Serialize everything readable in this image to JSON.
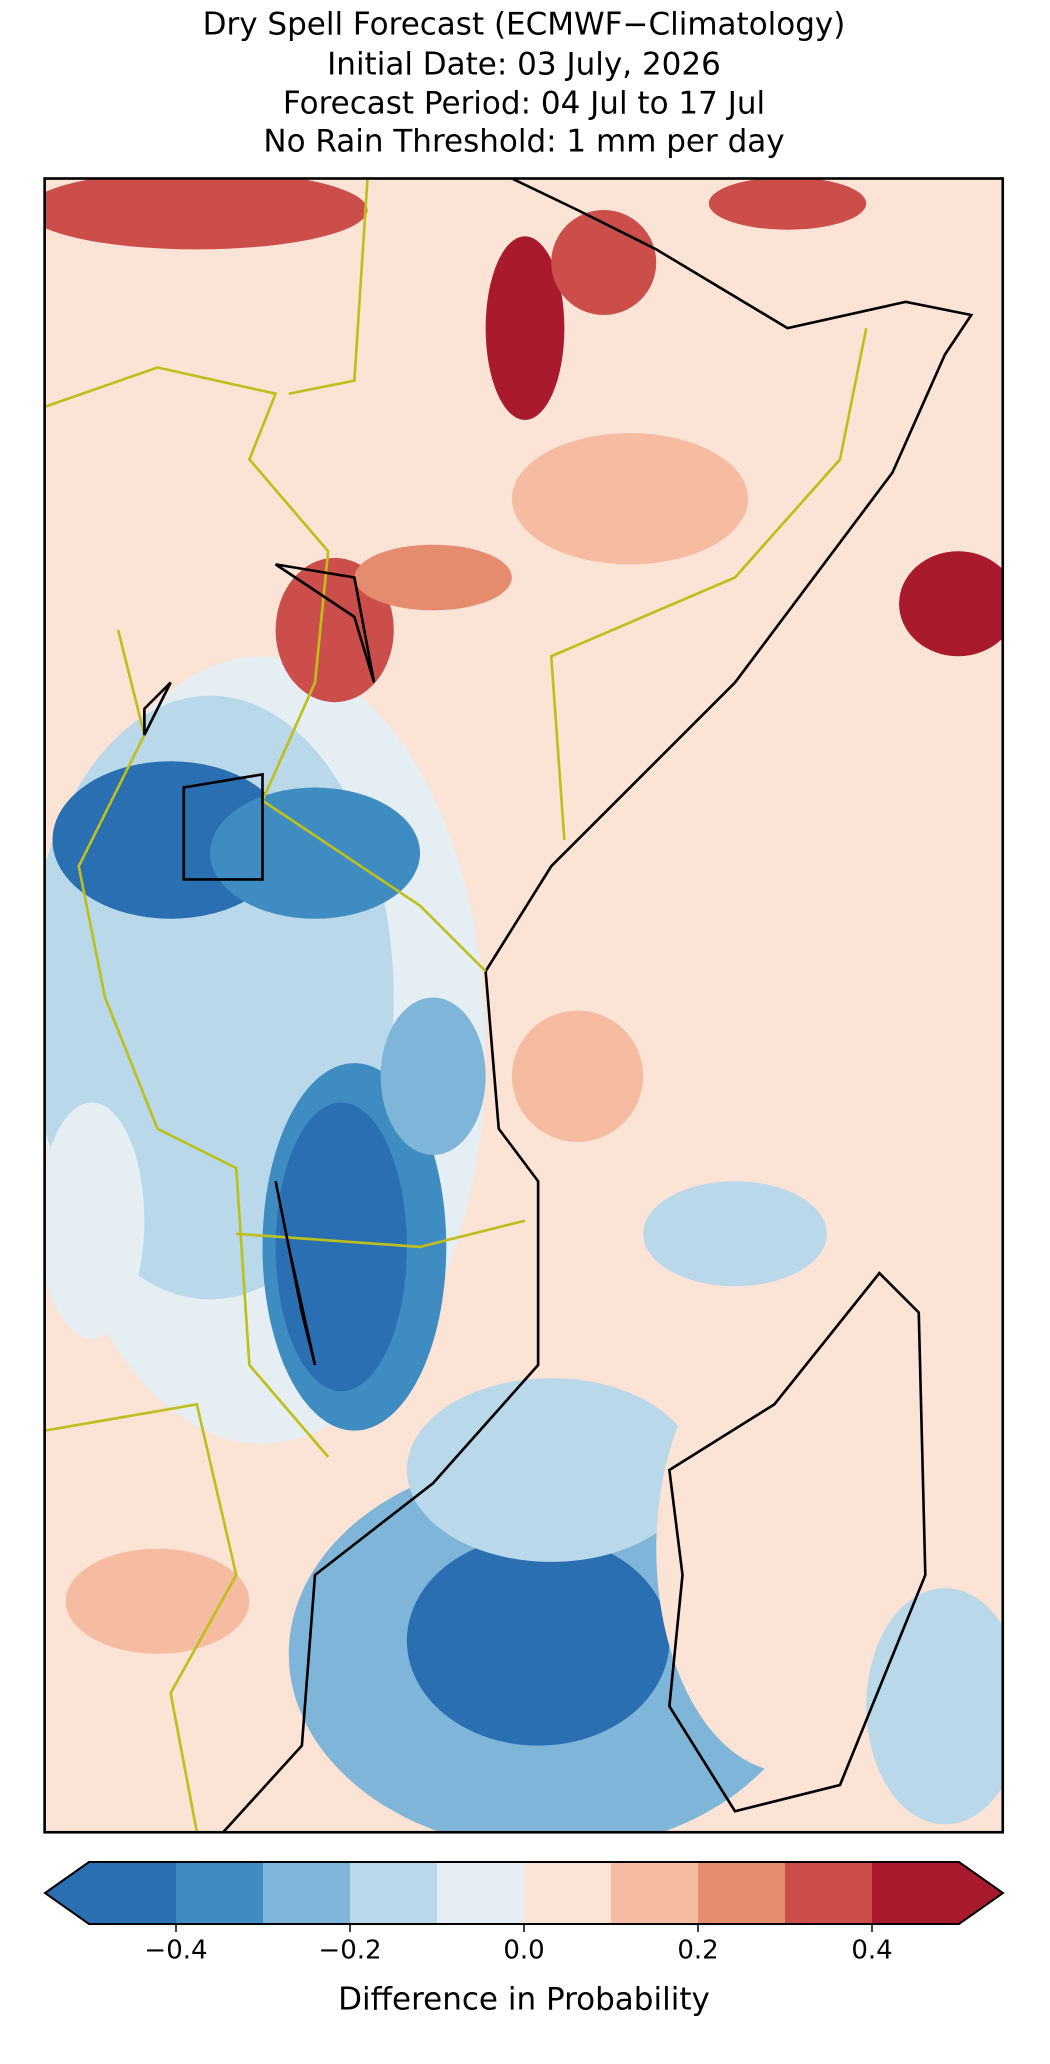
{
  "title": [
    "Dry Spell Forecast (ECMWF−Climatology)",
    "Initial Date: 03 July, 2026",
    "Forecast Period: 04 Jul to 17 Jul",
    "No Rain Threshold: 1 mm per day"
  ],
  "colorbar": {
    "label": "Difference in Probability",
    "bounds": [
      -0.5,
      -0.4,
      -0.3,
      -0.2,
      -0.1,
      0,
      0.1,
      0.2,
      0.3,
      0.4,
      0.5
    ],
    "colors": [
      "#2b6fb3",
      "#3f8cc3",
      "#7fb5d9",
      "#b9d8ea",
      "#e5eef3",
      "#fbe3d6",
      "#f6bca1",
      "#e58c6f",
      "#cc4e4a",
      "#aa1a2e"
    ],
    "ticks": [
      {
        "value": -0.4,
        "label": "−0.4"
      },
      {
        "value": -0.2,
        "label": "−0.2"
      },
      {
        "value": 0,
        "label": "0.0"
      },
      0.2,
      0.4
    ],
    "extend": "both"
  }
}
